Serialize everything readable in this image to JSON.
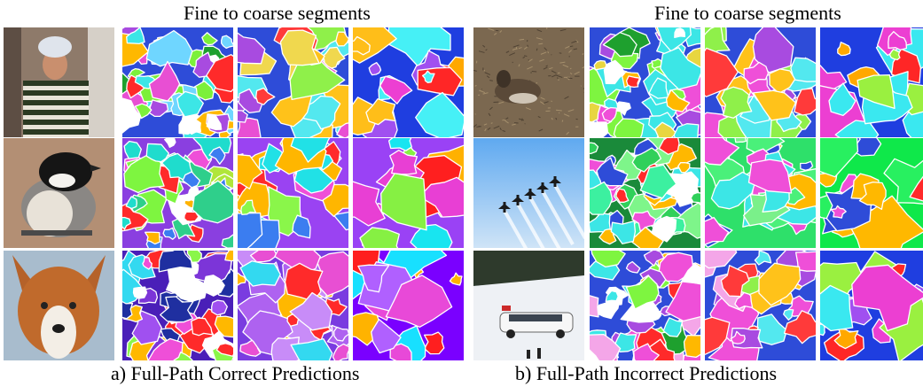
{
  "panels": [
    {
      "heading": "Fine to coarse segments",
      "caption": "a) Full-Path Correct Predictions",
      "rows": [
        {
          "photo": "person-photo",
          "segments": [
            {
              "level": "fine",
              "palette": [
                "#2e4cd8",
                "#e84fd3",
                "#a84be0",
                "#ffb800",
                "#3ce6e6",
                "#7cf03a",
                "#e8d640",
                "#ff2a2a",
                "#1ea02e",
                "#6fd6ff",
                "#ffffff"
              ]
            },
            {
              "level": "medium",
              "palette": [
                "#2e4cd8",
                "#e84fd3",
                "#a84be0",
                "#ffc21a",
                "#53e8ef",
                "#8ff04a",
                "#f0d84e",
                "#ff3a3a"
              ]
            },
            {
              "level": "coarse",
              "palette": [
                "#1f3ee0",
                "#ec3fd2",
                "#ffa800",
                "#46f0f6",
                "#ffbe19",
                "#ff2626",
                "#a050f0"
              ]
            }
          ]
        },
        {
          "photo": "bird-photo",
          "segments": [
            {
              "level": "fine",
              "palette": [
                "#8a3fe0",
                "#1fdccd",
                "#7ef540",
                "#ffb300",
                "#ff2a2a",
                "#3b7df0",
                "#ef4fd8",
                "#2fcf8b",
                "#b0e63a",
                "#ffffff"
              ]
            },
            {
              "level": "medium",
              "palette": [
                "#9a43f2",
                "#21e1e6",
                "#8af64a",
                "#ffb600",
                "#ff2b2b",
                "#3b7df0",
                "#ef4fd8"
              ]
            },
            {
              "level": "coarse",
              "palette": [
                "#9a42f5",
                "#18e5f0",
                "#86f043",
                "#ffb100",
                "#ff1f1f",
                "#e83fd4"
              ]
            }
          ]
        },
        {
          "photo": "dog-photo",
          "segments": [
            {
              "level": "fine",
              "palette": [
                "#4a1fb8",
                "#a050f0",
                "#7c35d8",
                "#ef4fd8",
                "#ffb800",
                "#33d9f0",
                "#8af64a",
                "#ff2a2a",
                "#1f2fa0",
                "#ffffff"
              ]
            },
            {
              "level": "medium",
              "palette": [
                "#7a3ce0",
                "#ae62f0",
                "#c88cf8",
                "#e84fd3",
                "#ffb800",
                "#33d9f0",
                "#ff2a2a"
              ]
            },
            {
              "level": "coarse",
              "palette": [
                "#7a00ff",
                "#b060ff",
                "#e849d8",
                "#18e0ff",
                "#ffb300",
                "#ff1f1f"
              ]
            }
          ]
        }
      ]
    },
    {
      "heading": "Fine to coarse segments",
      "caption": "b) Full-Path Incorrect Predictions",
      "rows": [
        {
          "photo": "bird-on-ground-photo",
          "segments": [
            {
              "level": "fine",
              "palette": [
                "#2e4cd8",
                "#ef4fd8",
                "#ffb800",
                "#7ef540",
                "#3ce6e6",
                "#ff2a2a",
                "#a84be0",
                "#e8d640",
                "#1ea02e",
                "#ffffff"
              ]
            },
            {
              "level": "medium",
              "palette": [
                "#2e4cd8",
                "#ef4fd8",
                "#ffc21a",
                "#8ff04a",
                "#53e8ef",
                "#ff3a3a",
                "#a84be0"
              ]
            },
            {
              "level": "coarse",
              "palette": [
                "#1f3ee0",
                "#ec3fd2",
                "#ffa800",
                "#9af040",
                "#3ae8f0",
                "#ff2626"
              ]
            }
          ]
        },
        {
          "photo": "jets-photo",
          "segments": [
            {
              "level": "fine",
              "palette": [
                "#1a8a3a",
                "#30d05a",
                "#7ef58a",
                "#3cf0a0",
                "#ef4fd8",
                "#2e4cd8",
                "#ffb800",
                "#ff2a2a",
                "#3ce6e6",
                "#ffffff"
              ]
            },
            {
              "level": "medium",
              "palette": [
                "#2ee06a",
                "#4af07a",
                "#7af08a",
                "#ef4fd8",
                "#2e4cd8",
                "#ffb800",
                "#3ce6e6"
              ]
            },
            {
              "level": "coarse",
              "palette": [
                "#0fe84a",
                "#28f060",
                "#ef4fd8",
                "#2e4cd8",
                "#ffb800",
                "#ff2a2a"
              ]
            }
          ]
        },
        {
          "photo": "snow-car-photo",
          "segments": [
            {
              "level": "fine",
              "palette": [
                "#2e4cd8",
                "#ef4fd8",
                "#ffb800",
                "#7ef540",
                "#3ce6e6",
                "#ff2a2a",
                "#a84be0",
                "#f4a6e8",
                "#1ea02e",
                "#ffffff"
              ]
            },
            {
              "level": "medium",
              "palette": [
                "#2e4cd8",
                "#ef4fd8",
                "#ffc21a",
                "#8ff04a",
                "#53e8ef",
                "#ff3a3a",
                "#a84be0",
                "#f4a6e8"
              ]
            },
            {
              "level": "coarse",
              "palette": [
                "#1f3ee0",
                "#ec3fd2",
                "#ffa800",
                "#9af040",
                "#3ae8f0",
                "#ff2626",
                "#a050f0"
              ]
            }
          ]
        }
      ]
    }
  ]
}
